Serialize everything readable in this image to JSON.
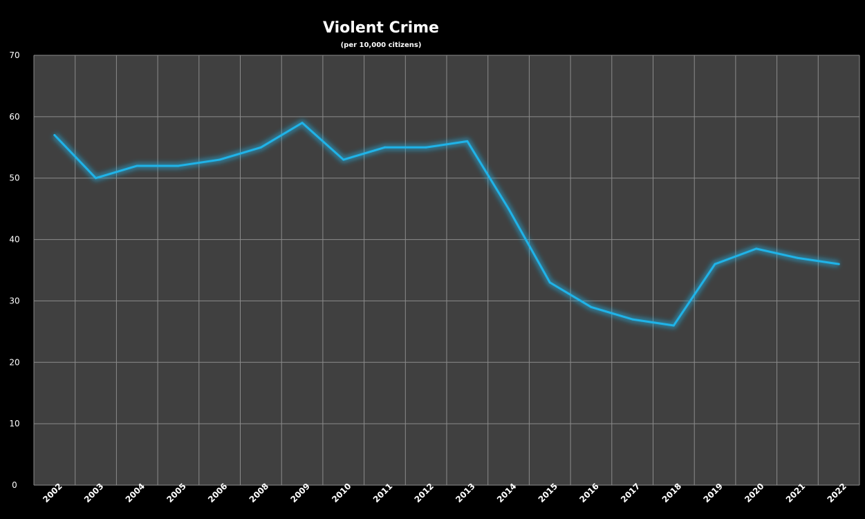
{
  "chart_data": {
    "type": "line",
    "title": "Violent Crime",
    "subtitle": "(per 10,000 citizens)",
    "xlabel": "",
    "ylabel": "",
    "categories": [
      "2002",
      "2003",
      "2004",
      "2005",
      "2006",
      "2008",
      "2009",
      "2010",
      "2011",
      "2012",
      "2013",
      "2014",
      "2015",
      "2016",
      "2017",
      "2018",
      "2019",
      "2020",
      "2021",
      "2022"
    ],
    "series": [
      {
        "values": [
          57,
          50,
          52,
          52,
          53,
          55,
          59,
          53,
          55,
          55,
          56,
          45,
          33,
          29,
          27,
          26,
          36,
          38.5,
          37,
          36
        ]
      }
    ],
    "ylim": [
      0,
      70
    ],
    "yticks": [
      0,
      10,
      20,
      30,
      40,
      50,
      60,
      70
    ],
    "grid": true,
    "legend": "none",
    "colors": {
      "background": "#000000",
      "plot_area": "#404040",
      "grid": "#8c8c8c",
      "line": "#1fb3e8",
      "glow": "#1fb3e8",
      "text": "#ffffff"
    }
  }
}
